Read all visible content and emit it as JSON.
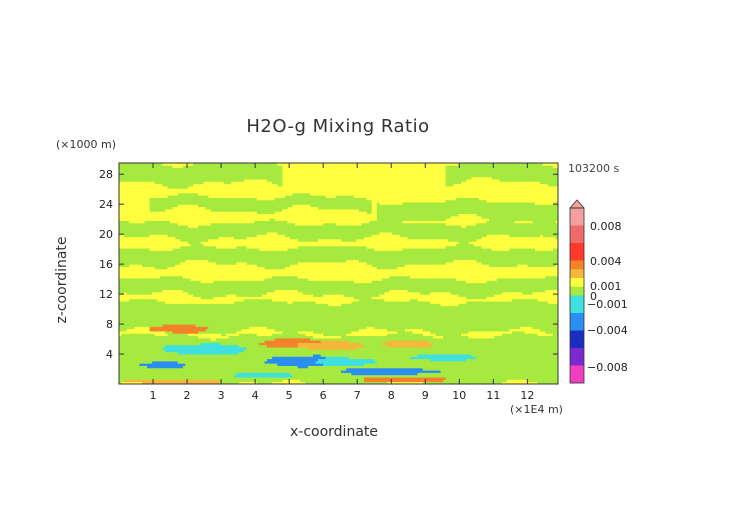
{
  "chart_data": {
    "type": "heatmap",
    "title": "H2O-g Mixing Ratio",
    "xlabel": "x-coordinate",
    "ylabel": "z-coordinate",
    "x_unit": "(×1E4 m)",
    "y_unit": "(×1000 m)",
    "time_label": "103200 s",
    "xlim": [
      0,
      12.9
    ],
    "ylim": [
      0,
      29.5
    ],
    "x_ticks": [
      "1",
      "2",
      "3",
      "4",
      "5",
      "6",
      "7",
      "8",
      "9",
      "10",
      "11",
      "12"
    ],
    "y_ticks": [
      "4",
      "8",
      "12",
      "16",
      "20",
      "24",
      "28"
    ],
    "colorbar": {
      "labels": [
        "0.008",
        "0.004",
        "0.001",
        "0",
        "-0.001",
        "-0.004",
        "-0.008"
      ],
      "colors": {
        "strong_pos": "#f4a0a0",
        "pos_high": "#f06a6a",
        "pos_mid": "#ff3a2a",
        "pos_orange": "#f4822a",
        "pos_light": "#f5b73a",
        "near_zero_pos": "#ffff40",
        "near_zero_neg": "#a6ea40",
        "neg_cyan": "#40e0e0",
        "neg_blue": "#2a8ef0",
        "neg_dark": "#1a2ec0",
        "neg_purple": "#7a2ad0",
        "neg_magenta": "#f040c0"
      }
    },
    "field": {
      "background_value": 0.0005,
      "bands": [
        {
          "z": [
            26.8,
            29.5
          ],
          "x": [
            0,
            4.8
          ],
          "value": -0.0005
        },
        {
          "z": [
            27.0,
            29.5
          ],
          "x": [
            9.6,
            12.9
          ],
          "value": -0.0005
        },
        {
          "z": [
            23.3,
            25.0
          ],
          "x": [
            0.9,
            7.4
          ],
          "value": -0.0005
        },
        {
          "z": [
            22.0,
            24.4
          ],
          "x": [
            7.6,
            12.9
          ],
          "value": -0.0005
        },
        {
          "z": [
            19.5,
            21.5
          ],
          "x": [
            0,
            12.9
          ],
          "value": -0.0005
        },
        {
          "z": [
            16.0,
            18.2
          ],
          "x": [
            0,
            12.9
          ],
          "value": -0.0005
        },
        {
          "z": [
            12.0,
            14.0
          ],
          "x": [
            0,
            12.9
          ],
          "value": -0.0005
        },
        {
          "z": [
            7.0,
            11.0
          ],
          "x": [
            0,
            12.9
          ],
          "value": -0.0005
        },
        {
          "z": [
            0,
            6.5
          ],
          "x": [
            0,
            12.9
          ],
          "value": -0.0008
        }
      ],
      "blobs": [
        {
          "x": 1.8,
          "z": 7.4,
          "rx": 0.9,
          "rz": 0.55,
          "value": 0.0015
        },
        {
          "x": 5.1,
          "z": 5.5,
          "rx": 0.9,
          "rz": 0.7,
          "value": 0.0015
        },
        {
          "x": 6.3,
          "z": 5.2,
          "rx": 1.0,
          "rz": 0.55,
          "value": 0.0012
        },
        {
          "x": 8.5,
          "z": 5.4,
          "rx": 0.7,
          "rz": 0.55,
          "value": 0.0012
        },
        {
          "x": 2.5,
          "z": 4.7,
          "rx": 1.4,
          "rz": 0.7,
          "value": -0.002
        },
        {
          "x": 5.4,
          "z": 3.1,
          "rx": 1.2,
          "rz": 0.75,
          "value": -0.003
        },
        {
          "x": 6.6,
          "z": 3.0,
          "rx": 0.9,
          "rz": 0.6,
          "value": -0.0025
        },
        {
          "x": 9.6,
          "z": 3.6,
          "rx": 1.0,
          "rz": 0.45,
          "value": -0.0018
        },
        {
          "x": 1.3,
          "z": 2.6,
          "rx": 0.7,
          "rz": 0.4,
          "value": -0.0035
        },
        {
          "x": 7.9,
          "z": 1.7,
          "rx": 1.4,
          "rz": 0.45,
          "value": -0.0028
        },
        {
          "x": 4.3,
          "z": 1.2,
          "rx": 0.9,
          "rz": 0.4,
          "value": -0.0015
        },
        {
          "x": 11.8,
          "z": 1.5,
          "rx": 0.9,
          "rz": 0.35,
          "value": -0.0012
        },
        {
          "x": 8.4,
          "z": 0.6,
          "rx": 1.3,
          "rz": 0.35,
          "value": 0.0014
        },
        {
          "x": 1.7,
          "z": 0.35,
          "rx": 1.5,
          "rz": 0.3,
          "value": 0.0012
        }
      ]
    }
  }
}
